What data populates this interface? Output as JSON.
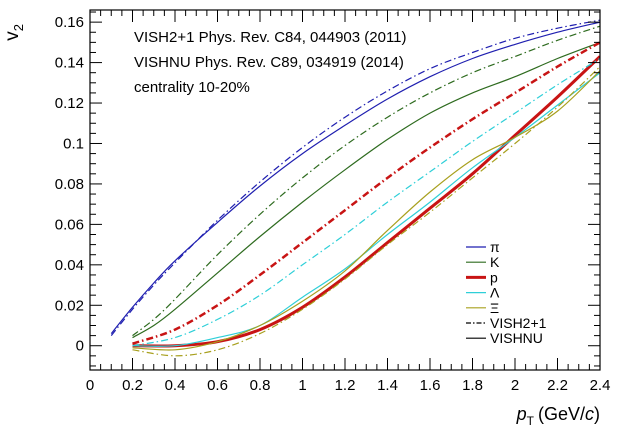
{
  "chart_data": {
    "type": "line",
    "ylabel": "v",
    "ylabel_sub": "2",
    "xlabel_p": "p",
    "xlabel_sub": "T",
    "xlabel_unit_open": "(GeV/",
    "xlabel_unit_c": "c",
    "xlabel_unit_close": ")",
    "xlim": [
      0,
      2.4
    ],
    "ylim": [
      -0.012,
      0.166
    ],
    "xticks": [
      0,
      0.2,
      0.4,
      0.6,
      0.8,
      1,
      1.2,
      1.4,
      1.6,
      1.8,
      2,
      2.2,
      2.4
    ],
    "xtick_labels": [
      "0",
      "0.2",
      "0.4",
      "0.6",
      "0.8",
      "1",
      "1.2",
      "1.4",
      "1.6",
      "1.8",
      "2",
      "2.2",
      "2.4"
    ],
    "yticks": [
      0,
      0.02,
      0.04,
      0.06,
      0.08,
      0.1,
      0.12,
      0.14,
      0.16
    ],
    "ytick_labels": [
      "0",
      "0.02",
      "0.04",
      "0.06",
      "0.08",
      "0.1",
      "0.12",
      "0.14",
      "0.16"
    ],
    "grid": false,
    "legend_position": "bottom-right",
    "annotations": [
      "VISH2+1 Phys. Rev. C84, 044903 (2011)",
      "VISHNU Phys. Rev. C89, 034919 (2014)",
      "centrality 10-20%"
    ],
    "legend": [
      {
        "label": "π",
        "kind": "series",
        "color": "#1f1fb0",
        "style": "solid",
        "thick": false
      },
      {
        "label": "K",
        "kind": "series",
        "color": "#2e6b1f",
        "style": "solid",
        "thick": false
      },
      {
        "label": "p",
        "kind": "series",
        "color": "#c81414",
        "style": "solid",
        "thick": true
      },
      {
        "label": "Λ",
        "kind": "series",
        "color": "#2ecfd8",
        "style": "solid",
        "thick": false
      },
      {
        "label": "Ξ",
        "kind": "series",
        "color": "#a8a01e",
        "style": "solid",
        "thick": false
      },
      {
        "label": "VISH2+1",
        "kind": "style",
        "color": "#000000",
        "style": "dashdot",
        "thick": false
      },
      {
        "label": "VISHNU",
        "kind": "style",
        "color": "#000000",
        "style": "solid",
        "thick": false
      }
    ],
    "series": [
      {
        "particle": "π",
        "model": "VISHNU",
        "color": "#1f1fb0",
        "style": "solid",
        "width": 1.2,
        "x": [
          0.1,
          0.2,
          0.3,
          0.4,
          0.6,
          0.8,
          1.0,
          1.2,
          1.4,
          1.6,
          1.8,
          2.0,
          2.2,
          2.4
        ],
        "y": [
          0.006,
          0.019,
          0.031,
          0.042,
          0.061,
          0.079,
          0.095,
          0.109,
          0.122,
          0.133,
          0.142,
          0.149,
          0.155,
          0.16
        ]
      },
      {
        "particle": "π",
        "model": "VISH2+1",
        "color": "#1f1fb0",
        "style": "dashdot",
        "width": 1.2,
        "x": [
          0.1,
          0.2,
          0.3,
          0.4,
          0.6,
          0.8,
          1.0,
          1.2,
          1.4,
          1.6,
          1.8,
          2.0,
          2.2,
          2.4
        ],
        "y": [
          0.005,
          0.018,
          0.03,
          0.041,
          0.062,
          0.081,
          0.098,
          0.113,
          0.126,
          0.137,
          0.145,
          0.152,
          0.157,
          0.161
        ]
      },
      {
        "particle": "K",
        "model": "VISHNU",
        "color": "#2e6b1f",
        "style": "solid",
        "width": 1.2,
        "x": [
          0.2,
          0.3,
          0.4,
          0.6,
          0.8,
          1.0,
          1.2,
          1.4,
          1.6,
          1.8,
          2.0,
          2.2,
          2.4
        ],
        "y": [
          0.004,
          0.01,
          0.018,
          0.036,
          0.054,
          0.071,
          0.087,
          0.102,
          0.115,
          0.125,
          0.133,
          0.142,
          0.15
        ]
      },
      {
        "particle": "K",
        "model": "VISH2+1",
        "color": "#2e6b1f",
        "style": "dashdot",
        "width": 1.2,
        "x": [
          0.2,
          0.3,
          0.4,
          0.6,
          0.8,
          1.0,
          1.2,
          1.4,
          1.6,
          1.8,
          2.0,
          2.2,
          2.4
        ],
        "y": [
          0.005,
          0.013,
          0.023,
          0.045,
          0.065,
          0.083,
          0.099,
          0.113,
          0.125,
          0.135,
          0.143,
          0.151,
          0.158
        ]
      },
      {
        "particle": "p",
        "model": "VISHNU",
        "color": "#c81414",
        "style": "solid",
        "width": 3.0,
        "x": [
          0.2,
          0.4,
          0.6,
          0.8,
          1.0,
          1.2,
          1.4,
          1.6,
          1.8,
          2.0,
          2.2,
          2.4
        ],
        "y": [
          0.0,
          0.0,
          0.002,
          0.008,
          0.019,
          0.034,
          0.051,
          0.068,
          0.085,
          0.104,
          0.123,
          0.143
        ]
      },
      {
        "particle": "p",
        "model": "VISH2+1",
        "color": "#c81414",
        "style": "dashdot",
        "width": 2.5,
        "x": [
          0.2,
          0.4,
          0.6,
          0.8,
          1.0,
          1.2,
          1.4,
          1.6,
          1.8,
          2.0,
          2.2,
          2.4
        ],
        "y": [
          0.001,
          0.008,
          0.02,
          0.035,
          0.051,
          0.067,
          0.083,
          0.098,
          0.112,
          0.125,
          0.138,
          0.15
        ]
      },
      {
        "particle": "Λ",
        "model": "VISHNU",
        "color": "#2ecfd8",
        "style": "solid",
        "width": 1.2,
        "x": [
          0.2,
          0.4,
          0.6,
          0.8,
          1.0,
          1.2,
          1.4,
          1.6,
          1.8,
          2.0,
          2.2,
          2.4
        ],
        "y": [
          0.0,
          0.0,
          0.004,
          0.01,
          0.024,
          0.038,
          0.055,
          0.071,
          0.088,
          0.103,
          0.119,
          0.135
        ]
      },
      {
        "particle": "Λ",
        "model": "VISH2+1",
        "color": "#2ecfd8",
        "style": "dashdot",
        "width": 1.2,
        "x": [
          0.2,
          0.4,
          0.6,
          0.8,
          1.0,
          1.2,
          1.4,
          1.6,
          1.8,
          2.0,
          2.2,
          2.4
        ],
        "y": [
          0.0,
          0.004,
          0.013,
          0.025,
          0.04,
          0.055,
          0.071,
          0.086,
          0.101,
          0.115,
          0.129,
          0.142
        ]
      },
      {
        "particle": "Ξ",
        "model": "VISHNU",
        "color": "#a8a01e",
        "style": "solid",
        "width": 1.2,
        "x": [
          0.2,
          0.4,
          0.6,
          0.8,
          1.0,
          1.2,
          1.4,
          1.6,
          1.8,
          2.0,
          2.2,
          2.4
        ],
        "y": [
          -0.001,
          -0.002,
          0.002,
          0.01,
          0.022,
          0.037,
          0.057,
          0.076,
          0.092,
          0.103,
          0.116,
          0.136
        ]
      },
      {
        "particle": "Ξ",
        "model": "VISH2+1",
        "color": "#a8a01e",
        "style": "dashdot",
        "width": 1.2,
        "x": [
          0.2,
          0.4,
          0.6,
          0.8,
          1.0,
          1.2,
          1.4,
          1.6,
          1.8,
          2.0,
          2.2,
          2.4
        ],
        "y": [
          -0.002,
          -0.005,
          -0.002,
          0.006,
          0.018,
          0.033,
          0.05,
          0.066,
          0.083,
          0.1,
          0.118,
          0.138
        ]
      }
    ]
  }
}
